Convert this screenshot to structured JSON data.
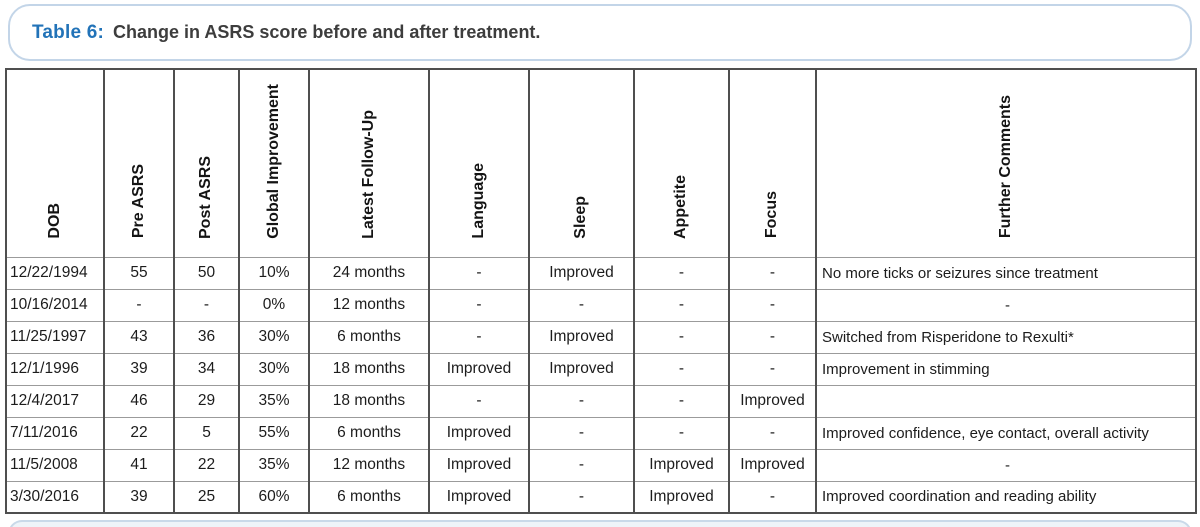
{
  "caption": {
    "label": "Table 6:",
    "text": "Change in ASRS score before and after treatment."
  },
  "table": {
    "headers": [
      "DOB",
      "Pre ASRS",
      "Post ASRS",
      "Global Improvement",
      "Latest Follow-Up",
      "Language",
      "Sleep",
      "Appetite",
      "Focus",
      "Further Comments"
    ],
    "rows": [
      [
        "12/22/1994",
        "55",
        "50",
        "10%",
        "24 months",
        "-",
        "Improved",
        "-",
        "-",
        "No more ticks or seizures since treatment"
      ],
      [
        "10/16/2014",
        "-",
        "-",
        "0%",
        "12 months",
        "-",
        "-",
        "-",
        "-",
        "-"
      ],
      [
        "11/25/1997",
        "43",
        "36",
        "30%",
        "6 months",
        "-",
        "Improved",
        "-",
        "-",
        "Switched from Risperidone to Rexulti*"
      ],
      [
        "12/1/1996",
        "39",
        "34",
        "30%",
        "18 months",
        "Improved",
        "Improved",
        "-",
        "-",
        "Improvement in stimming"
      ],
      [
        "12/4/2017",
        "46",
        "29",
        "35%",
        "18 months",
        "-",
        "-",
        "-",
        "Improved",
        ""
      ],
      [
        "7/11/2016",
        "22",
        "5",
        "55%",
        "6 months",
        "Improved",
        "-",
        "-",
        "-",
        "Improved confidence, eye contact, overall activity"
      ],
      [
        "11/5/2008",
        "41",
        "22",
        "35%",
        "12 months",
        "Improved",
        "-",
        "Improved",
        "Improved",
        "-"
      ],
      [
        "3/30/2016",
        "39",
        "25",
        "60%",
        "6 months",
        "Improved",
        "-",
        "Improved",
        "-",
        "Improved coordination and reading ability"
      ]
    ]
  },
  "colors": {
    "accent_blue": "#2273b8",
    "caption_text": "#3d3d3d",
    "box_border": "#c3d5e8",
    "grid_vertical": "#4f4f4f",
    "grid_horizontal": "#9b9b9b",
    "cell_text": "#1c1c1c"
  }
}
